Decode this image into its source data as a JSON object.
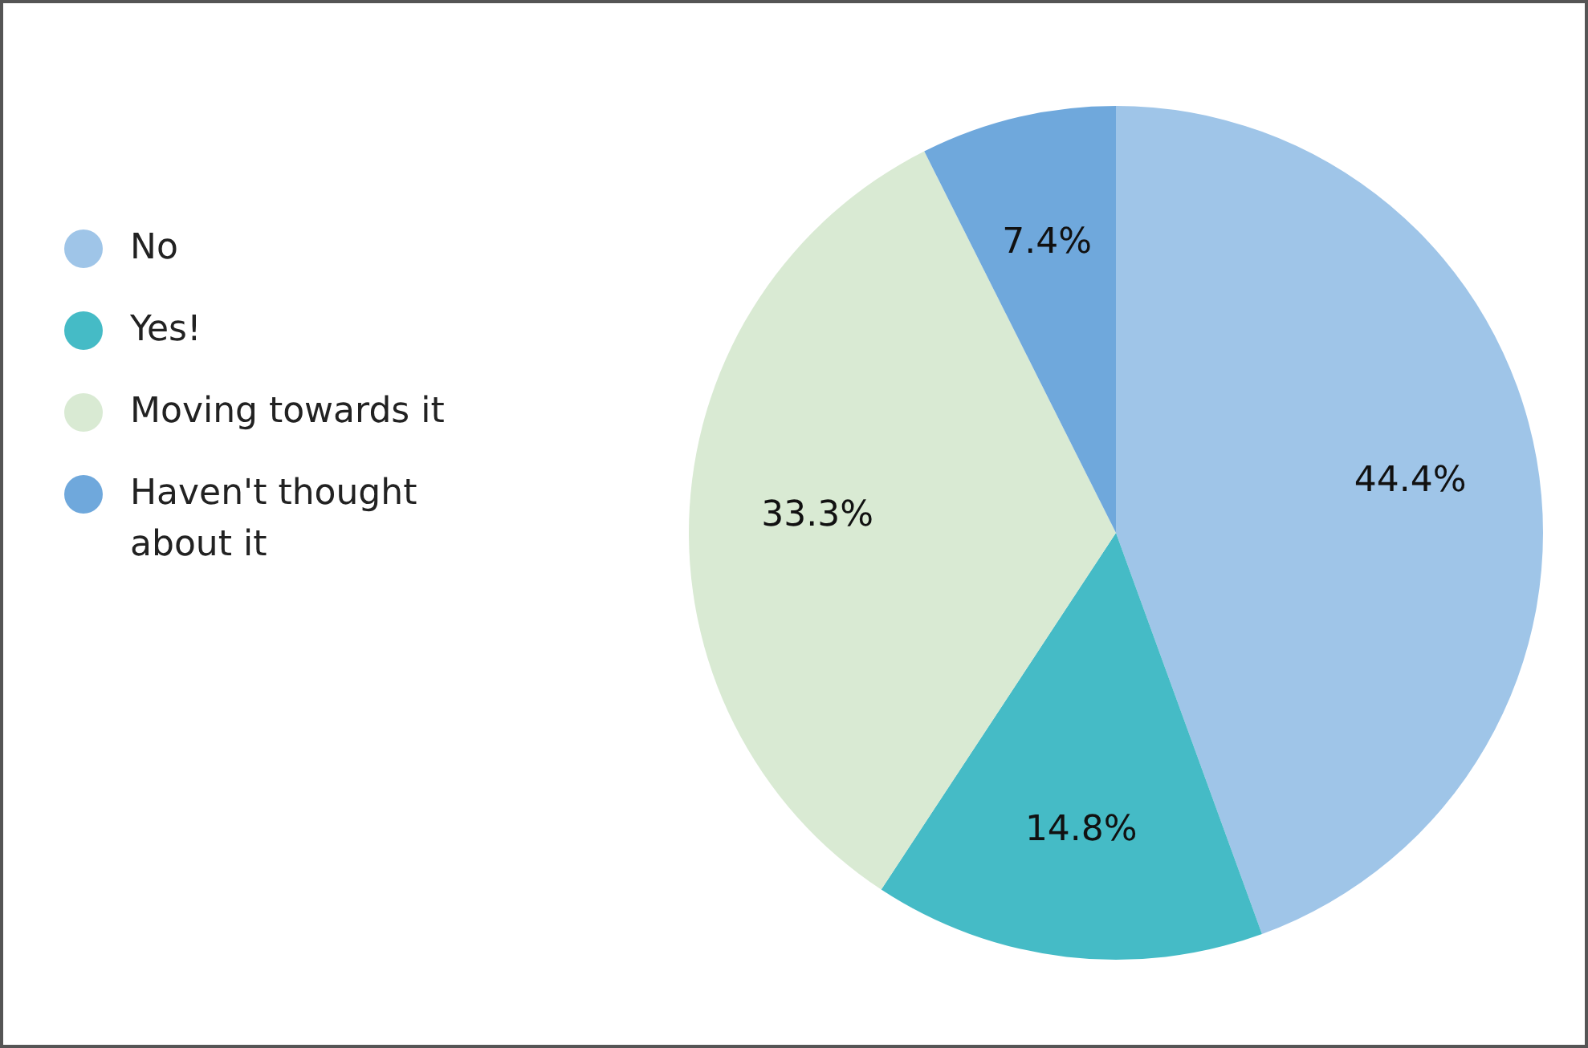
{
  "chart_data": {
    "type": "pie",
    "categories": [
      "No",
      "Yes!",
      "Moving towards it",
      "Haven't thought about it"
    ],
    "values": [
      44.4,
      14.8,
      33.3,
      7.4
    ],
    "colors": [
      "#9fc5e8",
      "#45bbc6",
      "#d9ead3",
      "#6fa8dc"
    ],
    "value_labels": [
      "44.4%",
      "14.8%",
      "33.3%",
      "7.4%"
    ],
    "legend": "left"
  }
}
